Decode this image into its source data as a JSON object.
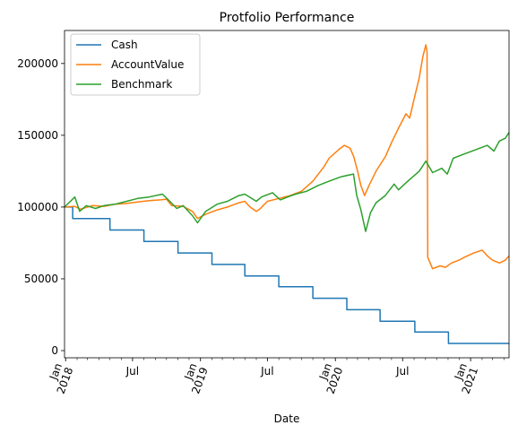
{
  "chart_data": {
    "type": "line",
    "title": "Protfolio Performance",
    "xlabel": "Date",
    "ylabel": "",
    "grid": false,
    "legend": "top-left",
    "x_range": [
      "2017-12-29",
      "2021-04-15"
    ],
    "ylim": [
      -5000,
      223000
    ],
    "y_ticks": [
      0,
      50000,
      100000,
      150000,
      200000
    ],
    "y_tick_labels": [
      "0",
      "50000",
      "100000",
      "150000",
      "200000"
    ],
    "x_ticks": [
      {
        "date": "2018-01-01",
        "month": "Jan",
        "year": "2018"
      },
      {
        "date": "2018-07-01",
        "month": "Jul",
        "year": ""
      },
      {
        "date": "2019-01-01",
        "month": "Jan",
        "year": "2019"
      },
      {
        "date": "2019-07-01",
        "month": "Jul",
        "year": ""
      },
      {
        "date": "2020-01-01",
        "month": "Jan",
        "year": "2020"
      },
      {
        "date": "2020-07-01",
        "month": "Jul",
        "year": ""
      },
      {
        "date": "2021-01-01",
        "month": "Jan",
        "year": "2021"
      }
    ],
    "series": [
      {
        "name": "Cash",
        "color": "#1f77b4",
        "step": true,
        "points": [
          [
            "2017-12-29",
            100000
          ],
          [
            "2018-01-20",
            92000
          ],
          [
            "2018-05-01",
            84000
          ],
          [
            "2018-08-01",
            76000
          ],
          [
            "2018-11-01",
            68000
          ],
          [
            "2019-02-01",
            60000
          ],
          [
            "2019-05-01",
            52000
          ],
          [
            "2019-08-01",
            44500
          ],
          [
            "2019-11-01",
            36500
          ],
          [
            "2020-02-01",
            28500
          ],
          [
            "2020-05-01",
            20500
          ],
          [
            "2020-08-03",
            13000
          ],
          [
            "2020-11-02",
            5000
          ],
          [
            "2021-04-15",
            5000
          ]
        ]
      },
      {
        "name": "AccountValue",
        "color": "#ff7f0e",
        "step": false,
        "points": [
          [
            "2017-12-29",
            100000
          ],
          [
            "2018-01-25",
            100500
          ],
          [
            "2018-02-10",
            98500
          ],
          [
            "2018-03-15",
            101000
          ],
          [
            "2018-04-15",
            100500
          ],
          [
            "2018-05-15",
            102000
          ],
          [
            "2018-06-15",
            102500
          ],
          [
            "2018-07-15",
            103500
          ],
          [
            "2018-08-15",
            104500
          ],
          [
            "2018-09-15",
            105000
          ],
          [
            "2018-10-01",
            105500
          ],
          [
            "2018-10-15",
            101000
          ],
          [
            "2018-11-15",
            100500
          ],
          [
            "2018-12-10",
            97000
          ],
          [
            "2018-12-24",
            92000
          ],
          [
            "2019-01-15",
            95000
          ],
          [
            "2019-02-15",
            98000
          ],
          [
            "2019-03-15",
            100000
          ],
          [
            "2019-04-15",
            103000
          ],
          [
            "2019-05-01",
            104000
          ],
          [
            "2019-05-15",
            100000
          ],
          [
            "2019-06-01",
            97000
          ],
          [
            "2019-06-10",
            98500
          ],
          [
            "2019-07-01",
            104000
          ],
          [
            "2019-08-01",
            106000
          ],
          [
            "2019-09-01",
            108000
          ],
          [
            "2019-10-01",
            111000
          ],
          [
            "2019-11-01",
            118000
          ],
          [
            "2019-12-01",
            128000
          ],
          [
            "2019-12-15",
            134000
          ],
          [
            "2020-01-10",
            140000
          ],
          [
            "2020-01-25",
            143000
          ],
          [
            "2020-02-10",
            141000
          ],
          [
            "2020-02-20",
            135000
          ],
          [
            "2020-03-01",
            125000
          ],
          [
            "2020-03-10",
            115000
          ],
          [
            "2020-03-20",
            108000
          ],
          [
            "2020-04-01",
            115000
          ],
          [
            "2020-04-20",
            125000
          ],
          [
            "2020-05-15",
            135000
          ],
          [
            "2020-06-01",
            145000
          ],
          [
            "2020-06-20",
            155000
          ],
          [
            "2020-07-10",
            165000
          ],
          [
            "2020-07-20",
            162000
          ],
          [
            "2020-08-01",
            175000
          ],
          [
            "2020-08-15",
            190000
          ],
          [
            "2020-08-25",
            205000
          ],
          [
            "2020-09-02",
            213000
          ],
          [
            "2020-09-05",
            208000
          ],
          [
            "2020-09-07",
            65000
          ],
          [
            "2020-09-20",
            57000
          ],
          [
            "2020-10-10",
            59000
          ],
          [
            "2020-10-25",
            58000
          ],
          [
            "2020-11-10",
            61000
          ],
          [
            "2020-12-01",
            63000
          ],
          [
            "2020-12-15",
            65000
          ],
          [
            "2021-01-10",
            68000
          ],
          [
            "2021-02-01",
            70000
          ],
          [
            "2021-02-15",
            66000
          ],
          [
            "2021-03-01",
            63000
          ],
          [
            "2021-03-20",
            61000
          ],
          [
            "2021-04-05",
            63000
          ],
          [
            "2021-04-15",
            66000
          ]
        ]
      },
      {
        "name": "Benchmark",
        "color": "#2ca02c",
        "step": false,
        "points": [
          [
            "2017-12-29",
            100000
          ],
          [
            "2018-01-10",
            103000
          ],
          [
            "2018-01-26",
            107000
          ],
          [
            "2018-02-08",
            97000
          ],
          [
            "2018-02-26",
            101000
          ],
          [
            "2018-03-23",
            99000
          ],
          [
            "2018-04-15",
            101000
          ],
          [
            "2018-05-15",
            102000
          ],
          [
            "2018-06-15",
            104000
          ],
          [
            "2018-07-15",
            106000
          ],
          [
            "2018-08-15",
            107000
          ],
          [
            "2018-09-20",
            109000
          ],
          [
            "2018-10-10",
            104000
          ],
          [
            "2018-10-29",
            99000
          ],
          [
            "2018-11-15",
            101000
          ],
          [
            "2018-12-10",
            94000
          ],
          [
            "2018-12-24",
            89000
          ],
          [
            "2019-01-15",
            97000
          ],
          [
            "2019-02-15",
            102000
          ],
          [
            "2019-03-15",
            104000
          ],
          [
            "2019-04-15",
            108000
          ],
          [
            "2019-05-01",
            109000
          ],
          [
            "2019-06-01",
            104000
          ],
          [
            "2019-06-15",
            107000
          ],
          [
            "2019-07-15",
            110000
          ],
          [
            "2019-08-05",
            105000
          ],
          [
            "2019-08-25",
            107000
          ],
          [
            "2019-09-15",
            109000
          ],
          [
            "2019-10-15",
            111000
          ],
          [
            "2019-11-15",
            115000
          ],
          [
            "2019-12-15",
            118000
          ],
          [
            "2020-01-15",
            121000
          ],
          [
            "2020-02-19",
            123000
          ],
          [
            "2020-02-28",
            108000
          ],
          [
            "2020-03-10",
            98000
          ],
          [
            "2020-03-23",
            83000
          ],
          [
            "2020-04-05",
            96000
          ],
          [
            "2020-04-20",
            103000
          ],
          [
            "2020-05-15",
            108000
          ],
          [
            "2020-06-08",
            116000
          ],
          [
            "2020-06-20",
            112000
          ],
          [
            "2020-07-15",
            118000
          ],
          [
            "2020-08-15",
            125000
          ],
          [
            "2020-09-02",
            132000
          ],
          [
            "2020-09-20",
            124000
          ],
          [
            "2020-10-15",
            127000
          ],
          [
            "2020-10-30",
            123000
          ],
          [
            "2020-11-15",
            134000
          ],
          [
            "2020-12-15",
            137000
          ],
          [
            "2021-01-15",
            140000
          ],
          [
            "2021-02-15",
            143000
          ],
          [
            "2021-03-05",
            139000
          ],
          [
            "2021-03-20",
            146000
          ],
          [
            "2021-04-05",
            148000
          ],
          [
            "2021-04-15",
            152000
          ]
        ]
      }
    ]
  }
}
